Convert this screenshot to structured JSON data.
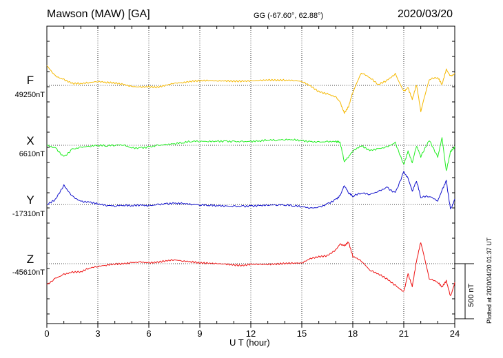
{
  "header": {
    "title": "Mawson (MAW)  [GA]",
    "coords": "GG (-67.60°,  62.88°)",
    "date": "2020/03/20"
  },
  "footer": {
    "plotted": "Plotted at 2020/04/20 01:37 UT"
  },
  "colors": {
    "F": "#f5b800",
    "X": "#22ee22",
    "Y": "#1111cc",
    "Z": "#ee1111"
  },
  "chart_data": {
    "type": "line",
    "title": "Mawson (MAW)  [GA]",
    "xlabel": "U T (hour)",
    "ylabel": "",
    "xlim": [
      0,
      24
    ],
    "x_ticks": [
      0,
      3,
      6,
      9,
      12,
      15,
      18,
      21,
      24
    ],
    "grid": true,
    "scale_bar": {
      "label": "500 nT",
      "value_nT": 500
    },
    "x": [
      0,
      0.5,
      1,
      1.5,
      2,
      2.5,
      3,
      3.5,
      4,
      4.5,
      5,
      5.5,
      6,
      6.5,
      7,
      7.5,
      8,
      8.5,
      9,
      9.5,
      10,
      10.5,
      11,
      11.5,
      12,
      12.5,
      13,
      13.5,
      14,
      14.5,
      15,
      15.5,
      16,
      16.5,
      17,
      17.25,
      17.5,
      17.75,
      18,
      18.5,
      19,
      19.5,
      20,
      20.5,
      21,
      21.25,
      21.5,
      21.75,
      22,
      22.5,
      23,
      23.25,
      23.5,
      23.75,
      24
    ],
    "series": [
      {
        "name": "F",
        "baseline_label": "49250nT",
        "baseline_nT": 49250,
        "values": [
          49430,
          49340,
          49310,
          49275,
          49270,
          49275,
          49280,
          49270,
          49265,
          49255,
          49240,
          49240,
          49245,
          49240,
          49255,
          49270,
          49270,
          49280,
          49285,
          49290,
          49290,
          49295,
          49295,
          49295,
          49295,
          49295,
          49295,
          49290,
          49290,
          49290,
          49285,
          49250,
          49200,
          49180,
          49150,
          49100,
          48995,
          49050,
          49180,
          49360,
          49320,
          49260,
          49300,
          49360,
          49200,
          49230,
          49120,
          49250,
          49010,
          49300,
          49320,
          49260,
          49400,
          49340,
          49360
        ]
      },
      {
        "name": "X",
        "baseline_label": "6610nT",
        "baseline_nT": 6610,
        "values": [
          6610,
          6590,
          6510,
          6580,
          6595,
          6600,
          6605,
          6600,
          6605,
          6610,
          6585,
          6590,
          6600,
          6615,
          6620,
          6625,
          6630,
          6640,
          6640,
          6640,
          6645,
          6650,
          6650,
          6650,
          6650,
          6650,
          6655,
          6650,
          6655,
          6655,
          6650,
          6645,
          6645,
          6650,
          6650,
          6640,
          6460,
          6500,
          6550,
          6600,
          6560,
          6580,
          6600,
          6640,
          6440,
          6560,
          6450,
          6600,
          6500,
          6650,
          6500,
          6680,
          6380,
          6560,
          6600
        ]
      },
      {
        "name": "Y",
        "baseline_label": "-17310nT",
        "baseline_nT": -17310,
        "values": [
          -17310,
          -17260,
          -17130,
          -17230,
          -17280,
          -17290,
          -17310,
          -17325,
          -17330,
          -17320,
          -17320,
          -17310,
          -17315,
          -17305,
          -17300,
          -17300,
          -17305,
          -17315,
          -17320,
          -17320,
          -17320,
          -17320,
          -17320,
          -17320,
          -17320,
          -17320,
          -17320,
          -17320,
          -17320,
          -17325,
          -17330,
          -17340,
          -17330,
          -17300,
          -17260,
          -17230,
          -17140,
          -17210,
          -17240,
          -17210,
          -17220,
          -17190,
          -17150,
          -17200,
          -17010,
          -17070,
          -17190,
          -17100,
          -17250,
          -17240,
          -17280,
          -17180,
          -17090,
          -17350,
          -17260
        ]
      },
      {
        "name": "Z",
        "baseline_label": "-45610nT",
        "baseline_nT": -45610,
        "values": [
          -45800,
          -45740,
          -45700,
          -45680,
          -45680,
          -45650,
          -45640,
          -45630,
          -45620,
          -45615,
          -45600,
          -45590,
          -45595,
          -45590,
          -45580,
          -45575,
          -45590,
          -45600,
          -45610,
          -45610,
          -45610,
          -45610,
          -45615,
          -45620,
          -45610,
          -45615,
          -45620,
          -45620,
          -45615,
          -45610,
          -45605,
          -45560,
          -45540,
          -45530,
          -45480,
          -45430,
          -45450,
          -45420,
          -45550,
          -45590,
          -45670,
          -45700,
          -45740,
          -45800,
          -45860,
          -45700,
          -45820,
          -45590,
          -45420,
          -45750,
          -45780,
          -45820,
          -45760,
          -45900,
          -45780
        ]
      }
    ]
  }
}
